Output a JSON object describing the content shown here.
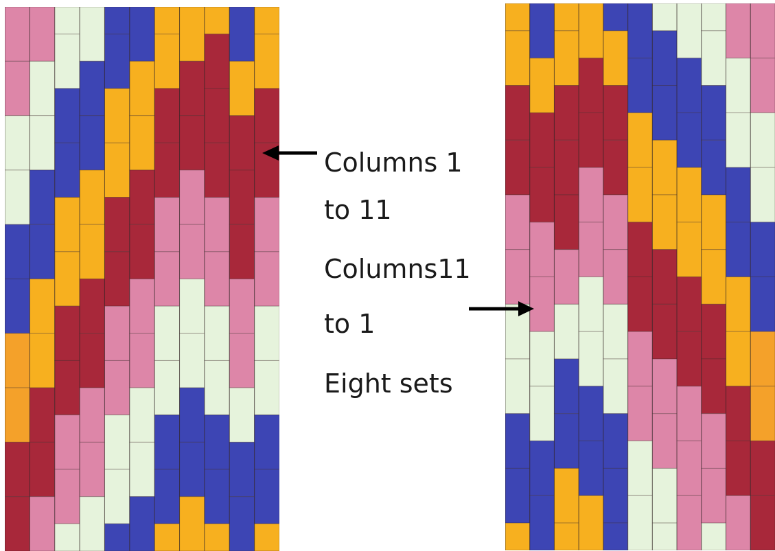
{
  "labels": {
    "line1": "Columns 1",
    "line2": "to 11",
    "line3": "Columns11",
    "line4": "to 1",
    "line5": "Eight sets"
  },
  "colors": {
    "pink": "#dd86a8",
    "cream": "#e6f3dc",
    "blue": "#3d45b4",
    "gold": "#f7b01f",
    "red": "#a8283a",
    "orange": "#f4a12a",
    "arrow": "#000000"
  },
  "quilt_left": {
    "columns": [
      [
        "pink",
        "pink",
        "cream",
        "cream",
        "blue",
        "blue",
        "orange",
        "orange",
        "red",
        "red"
      ],
      [
        "pink",
        "cream",
        "cream",
        "blue",
        "blue",
        "gold",
        "gold",
        "red",
        "red",
        "pink"
      ],
      [
        "cream",
        "cream",
        "blue",
        "blue",
        "gold",
        "gold",
        "red",
        "red",
        "pink",
        "pink"
      ],
      [
        "cream",
        "blue",
        "blue",
        "gold",
        "gold",
        "red",
        "red",
        "pink",
        "pink",
        "cream"
      ],
      [
        "blue",
        "blue",
        "gold",
        "gold",
        "red",
        "red",
        "pink",
        "pink",
        "cream",
        "cream"
      ],
      [
        "blue",
        "gold",
        "gold",
        "red",
        "red",
        "pink",
        "pink",
        "cream",
        "cream",
        "blue"
      ],
      [
        "gold",
        "gold",
        "red",
        "red",
        "pink",
        "pink",
        "cream",
        "cream",
        "blue",
        "blue"
      ],
      [
        "gold",
        "red",
        "red",
        "pink",
        "pink",
        "cream",
        "cream",
        "blue",
        "blue",
        "gold"
      ],
      [
        "gold",
        "red",
        "red",
        "red",
        "pink",
        "pink",
        "cream",
        "cream",
        "blue",
        "blue"
      ],
      [
        "blue",
        "gold",
        "red",
        "red",
        "red",
        "pink",
        "pink",
        "cream",
        "blue",
        "blue"
      ],
      [
        "gold",
        "gold",
        "red",
        "red",
        "pink",
        "pink",
        "cream",
        "cream",
        "blue",
        "blue"
      ]
    ]
  },
  "quilt_right": {
    "columns": [
      [
        "gold",
        "gold",
        "red",
        "red",
        "pink",
        "pink",
        "cream",
        "cream",
        "blue",
        "blue"
      ],
      [
        "blue",
        "gold",
        "red",
        "red",
        "pink",
        "pink",
        "cream",
        "cream",
        "blue",
        "blue"
      ],
      [
        "gold",
        "gold",
        "red",
        "red",
        "red",
        "pink",
        "cream",
        "blue",
        "blue",
        "gold"
      ],
      [
        "gold",
        "red",
        "red",
        "pink",
        "pink",
        "cream",
        "cream",
        "blue",
        "blue",
        "gold"
      ],
      [
        "blue",
        "gold",
        "red",
        "red",
        "pink",
        "pink",
        "cream",
        "cream",
        "blue",
        "blue"
      ],
      [
        "blue",
        "blue",
        "gold",
        "gold",
        "red",
        "red",
        "pink",
        "pink",
        "cream",
        "cream"
      ],
      [
        "cream",
        "blue",
        "blue",
        "gold",
        "gold",
        "red",
        "red",
        "pink",
        "pink",
        "cream"
      ],
      [
        "cream",
        "blue",
        "blue",
        "gold",
        "gold",
        "red",
        "red",
        "pink",
        "pink",
        "pink"
      ],
      [
        "cream",
        "cream",
        "blue",
        "blue",
        "gold",
        "gold",
        "red",
        "red",
        "pink",
        "pink"
      ],
      [
        "pink",
        "cream",
        "cream",
        "blue",
        "blue",
        "gold",
        "gold",
        "red",
        "red",
        "pink"
      ],
      [
        "pink",
        "pink",
        "cream",
        "cream",
        "blue",
        "blue",
        "orange",
        "orange",
        "red",
        "red"
      ]
    ]
  }
}
